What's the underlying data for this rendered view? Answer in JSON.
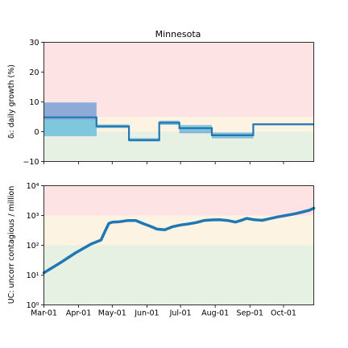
{
  "colors": {
    "zone_red": "#fde3e3",
    "zone_yellow": "#fdf3e3",
    "zone_green": "#e6f0e3",
    "band_outer": "#8eaad6",
    "band_inner": "#7ec7dc",
    "line": "#1f77b4"
  },
  "chart_data": [
    {
      "type": "line",
      "title": "Minnesota",
      "ylabel": "δᵢ: daily growth (%)",
      "ylim": [
        -10,
        30
      ],
      "yticks": [
        "30",
        "20",
        "10",
        "0",
        "−10"
      ],
      "grid": false,
      "zones": [
        {
          "from": 5,
          "to": 30,
          "color": "red"
        },
        {
          "from": 0,
          "to": 5,
          "color": "yellow"
        },
        {
          "from": -10,
          "to": 0,
          "color": "green"
        }
      ],
      "segments": [
        {
          "start": "2020-03-01",
          "end": "2020-04-17",
          "value": 4.8,
          "band_outer": [
            -1.5,
            9.8
          ],
          "band_inner": [
            -1.5,
            4.0
          ]
        },
        {
          "start": "2020-04-17",
          "end": "2020-05-16",
          "value": 1.8,
          "band_outer": [
            1.2,
            2.4
          ],
          "band_inner": [
            1.3,
            2.3
          ]
        },
        {
          "start": "2020-05-16",
          "end": "2020-06-12",
          "value": -2.8,
          "band_outer": [
            -3.3,
            -2.2
          ],
          "band_inner": [
            -3.2,
            -2.4
          ]
        },
        {
          "start": "2020-06-12",
          "end": "2020-06-30",
          "value": 3.0,
          "band_outer": [
            2.3,
            3.7
          ],
          "band_inner": [
            2.4,
            3.6
          ]
        },
        {
          "start": "2020-06-30",
          "end": "2020-07-29",
          "value": 1.2,
          "band_outer": [
            -0.5,
            2.2
          ],
          "band_inner": [
            0.0,
            2.0
          ]
        },
        {
          "start": "2020-07-29",
          "end": "2020-09-04",
          "value": -1.2,
          "band_outer": [
            -2.2,
            -0.3
          ],
          "band_inner": [
            -2.0,
            -0.5
          ]
        },
        {
          "start": "2020-09-04",
          "end": "2020-10-28",
          "value": 2.5,
          "band_outer": [
            2.2,
            2.8
          ],
          "band_inner": [
            2.3,
            2.7
          ]
        }
      ]
    },
    {
      "type": "line",
      "ylabel": "UC: uncorr contagious / million",
      "yscale": "log",
      "ylim": [
        1,
        10000
      ],
      "yticks": [
        "10⁴",
        "10³",
        "10²",
        "10¹",
        "10⁰"
      ],
      "grid": false,
      "zones": [
        {
          "from": 1000,
          "to": 10000,
          "color": "red"
        },
        {
          "from": 100,
          "to": 1000,
          "color": "yellow"
        },
        {
          "from": 1,
          "to": 100,
          "color": "green"
        }
      ],
      "series": [
        {
          "x": [
            "2020-03-01",
            "2020-03-15",
            "2020-03-29",
            "2020-04-12",
            "2020-04-21",
            "2020-04-25",
            "2020-04-28",
            "2020-05-01",
            "2020-05-08",
            "2020-05-15",
            "2020-05-22",
            "2020-05-29",
            "2020-06-05",
            "2020-06-10",
            "2020-06-17",
            "2020-06-24",
            "2020-07-01",
            "2020-07-08",
            "2020-07-15",
            "2020-07-22",
            "2020-07-29",
            "2020-08-05",
            "2020-08-12",
            "2020-08-19",
            "2020-08-24",
            "2020-08-29",
            "2020-09-05",
            "2020-09-12",
            "2020-09-19",
            "2020-09-26",
            "2020-10-03",
            "2020-10-10",
            "2020-10-17",
            "2020-10-24",
            "2020-10-28"
          ],
          "y": [
            12,
            25,
            55,
            110,
            150,
            320,
            540,
            600,
            620,
            680,
            680,
            530,
            420,
            350,
            330,
            420,
            480,
            520,
            580,
            680,
            710,
            720,
            680,
            600,
            680,
            800,
            720,
            690,
            790,
            900,
            1000,
            1120,
            1280,
            1500,
            1750
          ]
        }
      ]
    }
  ],
  "xaxis": {
    "start": "2020-03-01",
    "end": "2020-10-28",
    "ticks": [
      {
        "date": "2020-03-01",
        "label": "Mar-01"
      },
      {
        "date": "2020-04-01",
        "label": "Apr-01"
      },
      {
        "date": "2020-05-01",
        "label": "May-01"
      },
      {
        "date": "2020-06-01",
        "label": "Jun-01"
      },
      {
        "date": "2020-07-01",
        "label": "Jul-01"
      },
      {
        "date": "2020-08-01",
        "label": "Aug-01"
      },
      {
        "date": "2020-09-01",
        "label": "Sep-01"
      },
      {
        "date": "2020-10-01",
        "label": "Oct-01"
      }
    ]
  }
}
